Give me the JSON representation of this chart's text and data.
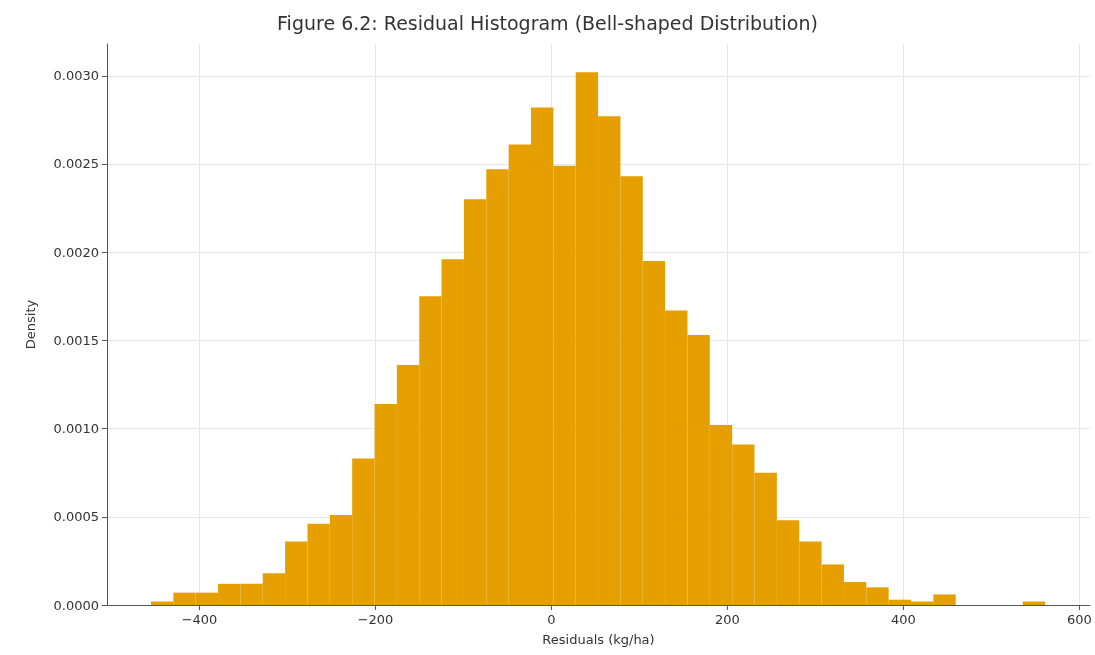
{
  "chart_data": {
    "type": "histogram",
    "title": "Figure 6.2: Residual Histogram (Bell-shaped Distribution)",
    "xlabel": "Residuals (kg/ha)",
    "ylabel": "Density",
    "color": "#e69f00",
    "bins": [
      -455,
      -429.6,
      -404.2,
      -378.8,
      -353.4,
      -328,
      -302.6,
      -277.2,
      -251.8,
      -226.4,
      -201,
      -175.6,
      -150.2,
      -124.8,
      -99.4,
      -74,
      -48.6,
      -23.2,
      2.2,
      27.6,
      53,
      78.4,
      103.8,
      129.2,
      154.6,
      180,
      205.4,
      230.8,
      256.2,
      281.6,
      307,
      332.4,
      357.8,
      383.2,
      408.6,
      434,
      459.4,
      484.8,
      510.2,
      535.6,
      561
    ],
    "values": [
      2e-05,
      7e-05,
      7e-05,
      0.00012,
      0.00012,
      0.00018,
      0.00036,
      0.00046,
      0.00051,
      0.00083,
      0.00114,
      0.00136,
      0.00175,
      0.00196,
      0.0023,
      0.00247,
      0.00261,
      0.00282,
      0.00249,
      0.00302,
      0.00277,
      0.00243,
      0.00195,
      0.00167,
      0.00153,
      0.00102,
      0.00091,
      0.00075,
      0.00048,
      0.00036,
      0.00023,
      0.00013,
      0.0001,
      3e-05,
      2e-05,
      6e-05,
      0,
      0,
      0,
      2e-05
    ],
    "xlim": [
      -505,
      612
    ],
    "xticks": [
      {
        "value": -400,
        "label": "−400"
      },
      {
        "value": -200,
        "label": "−200"
      },
      0,
      200,
      400,
      600
    ],
    "ylim": [
      0,
      0.00318
    ],
    "yticks": [
      {
        "value": 0,
        "label": "0.0000"
      },
      {
        "value": 0.0005,
        "label": "0.0005"
      },
      {
        "value": 0.001,
        "label": "0.0010"
      },
      {
        "value": 0.0015,
        "label": "0.0015"
      },
      {
        "value": 0.002,
        "label": "0.0020"
      },
      {
        "value": 0.0025,
        "label": "0.0025"
      },
      {
        "value": 0.003,
        "label": "0.0030"
      }
    ],
    "grid": true
  }
}
